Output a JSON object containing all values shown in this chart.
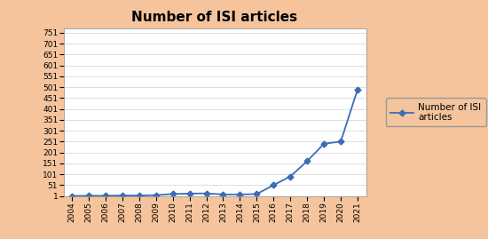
{
  "title": "Number of ISI articles",
  "years": [
    2004,
    2005,
    2006,
    2007,
    2008,
    2009,
    2010,
    2011,
    2012,
    2013,
    2014,
    2015,
    2016,
    2017,
    2018,
    2019,
    2020,
    2021
  ],
  "values": [
    1,
    2,
    2,
    3,
    3,
    5,
    10,
    12,
    13,
    8,
    8,
    10,
    51,
    91,
    161,
    241,
    251,
    491
  ],
  "line_color": "#3B6CB5",
  "marker": "D",
  "marker_size": 3.5,
  "legend_label": "Number of ISI\narticles",
  "yticks": [
    1,
    51,
    101,
    151,
    201,
    251,
    301,
    351,
    401,
    451,
    501,
    551,
    601,
    651,
    701,
    751
  ],
  "ylim": [
    1,
    770
  ],
  "background_color": "#F5C49C",
  "plot_bg_color": "#FFFFFF",
  "title_fontsize": 11,
  "tick_fontsize": 6.5,
  "legend_fontsize": 7.5
}
